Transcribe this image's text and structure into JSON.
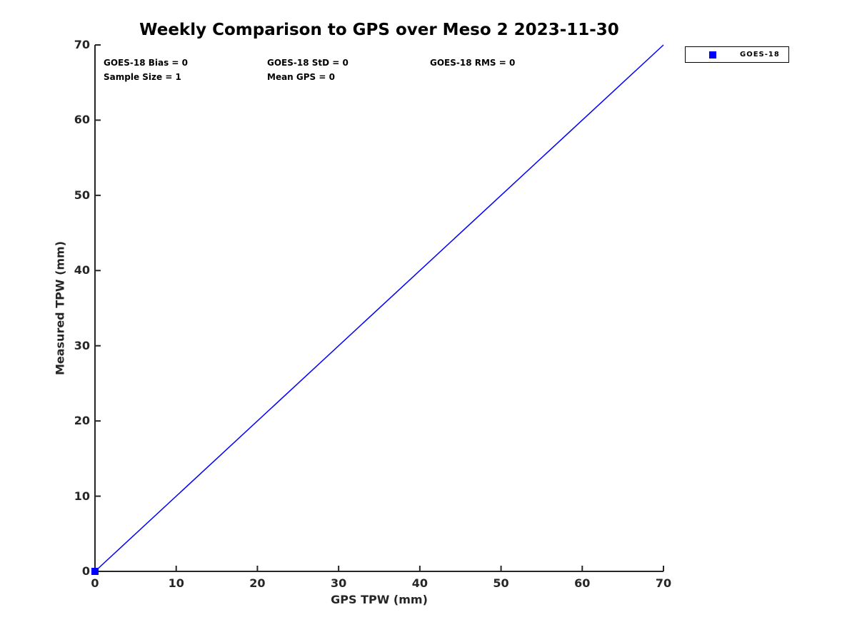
{
  "figure": {
    "background": "#ffffff"
  },
  "chart_data": {
    "type": "scatter",
    "title": "Weekly Comparison to GPS over Meso 2 2023-11-30",
    "xlabel": "GPS TPW (mm)",
    "ylabel": "Measured TPW (mm)",
    "xlim": [
      0,
      70
    ],
    "ylim": [
      0,
      70
    ],
    "xticks": [
      0,
      10,
      20,
      30,
      40,
      50,
      60,
      70
    ],
    "yticks": [
      0,
      10,
      20,
      30,
      40,
      50,
      60,
      70
    ],
    "grid": false,
    "series": [
      {
        "name": "GOES-18",
        "type": "scatter",
        "marker": "square",
        "color": "#0000ff",
        "points": [
          [
            0,
            0
          ]
        ]
      }
    ],
    "identity_line": {
      "from": [
        0,
        0
      ],
      "to": [
        70,
        70
      ],
      "color": "#0000ff",
      "width": 1.5
    },
    "stats": {
      "bias": "GOES-18 Bias = 0",
      "std": "GOES-18 StD = 0",
      "rms": "GOES-18 RMS = 0",
      "sample_size": "Sample Size = 1",
      "mean_gps": "Mean GPS = 0"
    },
    "legend": {
      "position": "outside-top-right",
      "entries": [
        {
          "label": "GOES-18",
          "marker": "square",
          "color": "#0000ff"
        }
      ]
    },
    "axis_color": "#262626",
    "text_color": "#000000"
  }
}
